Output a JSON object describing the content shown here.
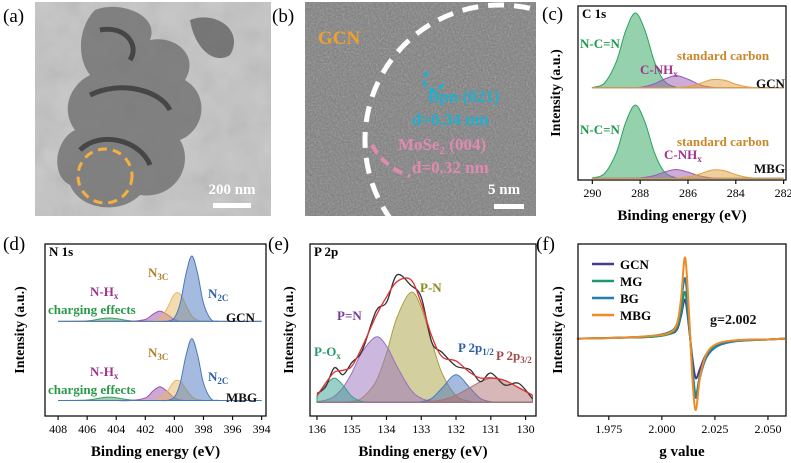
{
  "images": [
    {
      "label": "(a)",
      "scale_bar": "200 nm"
    },
    {
      "label": "(b)",
      "title": "GCN",
      "annotations": [
        {
          "text": "Bpn (021)"
        },
        {
          "text": "d=0.34 nm"
        },
        {
          "text": "MoSe",
          "sub": "2",
          "tail": " (004)"
        },
        {
          "text": "d=0.32 nm"
        }
      ],
      "scale_bar": "5 nm"
    }
  ],
  "chart_data": [
    {
      "type": "area",
      "label": "(c)",
      "title": "C 1s",
      "xlabel": "Binding energy (eV)",
      "ylabel": "Intensity (a.u.)",
      "x": [
        290,
        289.5,
        289,
        288.6,
        288.2,
        287.8,
        287.4,
        287,
        286.5,
        286,
        285.5,
        285,
        284.5,
        284,
        283.5,
        283,
        282.5,
        282
      ],
      "xlim": [
        290.6,
        281.9
      ],
      "xticks": [
        290,
        288,
        286,
        284,
        282
      ],
      "ylim": [
        0,
        100
      ],
      "series": [
        {
          "color": "#2aa35a",
          "fill": true,
          "values": [
            53.2,
            55.6,
            67.9,
            86,
            96,
            86,
            67.9,
            57,
            53.3,
            53,
            53,
            53,
            53,
            53,
            53,
            53,
            53,
            53
          ]
        },
        {
          "color": "#9b59b6",
          "fill": true,
          "values": [
            53,
            53,
            53,
            53,
            53,
            53.7,
            55.3,
            57.9,
            60,
            57.9,
            54.7,
            53.3,
            53,
            53,
            53,
            53,
            53,
            53
          ]
        },
        {
          "color": "#e0a040",
          "fill": true,
          "values": [
            53,
            53,
            53,
            53,
            53,
            53,
            53,
            53,
            53.1,
            53.7,
            55.5,
            57.7,
            57.4,
            55.1,
            53.5,
            53,
            53,
            53
          ]
        },
        {
          "color": "#2aa35a",
          "fill": true,
          "values": [
            1.2,
            3.6,
            15.6,
            33.3,
            43,
            33.3,
            15.6,
            4.9,
            1.3,
            1,
            1,
            1,
            1,
            1,
            1,
            1,
            1,
            1
          ]
        },
        {
          "color": "#9b59b6",
          "fill": true,
          "values": [
            1,
            1,
            1,
            1,
            1,
            1.5,
            2.6,
            4.5,
            6,
            4.5,
            2.3,
            1.2,
            1,
            1,
            1,
            1,
            1,
            1
          ]
        },
        {
          "color": "#e0a040",
          "fill": true,
          "values": [
            1,
            1,
            1,
            1,
            1,
            1,
            1,
            1,
            1.1,
            1.7,
            3.5,
            5.7,
            5.4,
            3.1,
            1.5,
            1,
            1,
            1
          ]
        }
      ],
      "annotations": [
        {
          "text": "N-C=N"
        },
        {
          "text": "C-NH",
          "sub": "x"
        },
        {
          "text": "standard carbon"
        },
        {
          "text": "GCN"
        },
        {
          "text": "N-C=N"
        },
        {
          "text": "C-NH",
          "sub": "x"
        },
        {
          "text": "standard carbon"
        },
        {
          "text": "MBG"
        }
      ]
    },
    {
      "type": "area",
      "label": "(d)",
      "title": "N 1s",
      "xlabel": "Binding energy (eV)",
      "ylabel": "Intensity (a.u.)",
      "x": [
        408,
        406,
        405,
        404.5,
        404,
        403,
        402,
        401.5,
        401,
        400.5,
        400,
        399.6,
        399.2,
        398.8,
        398.4,
        398,
        397.5,
        397,
        396,
        394
      ],
      "xlim": [
        408.9,
        393.7
      ],
      "xticks": [
        408,
        406,
        404,
        402,
        400,
        398,
        396,
        394
      ],
      "ylim": [
        0,
        100
      ],
      "series": [
        {
          "color": "#3aa060",
          "fill": true,
          "values": [
            55,
            55.3,
            56.6,
            57,
            56.6,
            55.3,
            55,
            55,
            55,
            55,
            55,
            55,
            55,
            55,
            55,
            55,
            55,
            55,
            55,
            55
          ]
        },
        {
          "color": "#a050a8",
          "fill": true,
          "values": [
            55,
            55,
            55,
            55,
            55,
            55,
            56.1,
            59,
            61,
            59,
            56.1,
            55.2,
            55,
            55,
            55,
            55,
            55,
            55,
            55,
            55
          ]
        },
        {
          "color": "#e8b860",
          "fill": true,
          "values": [
            55,
            55,
            55,
            55,
            55,
            55,
            55,
            55.1,
            56.6,
            62.6,
            70.9,
            70.9,
            64.4,
            58.2,
            55.7,
            55.1,
            55,
            55,
            55,
            55
          ]
        },
        {
          "color": "#4a78c0",
          "fill": true,
          "values": [
            55,
            55,
            55,
            55,
            55,
            55,
            55,
            55,
            55,
            55.1,
            57.1,
            65.6,
            82.7,
            93,
            82.7,
            65.6,
            56.3,
            55.1,
            55,
            55
          ]
        },
        {
          "color": "#3aa060",
          "fill": true,
          "values": [
            9,
            9.3,
            10.6,
            11,
            10.6,
            9.3,
            9,
            9,
            9,
            9,
            9,
            9,
            9,
            9,
            9,
            9,
            9,
            9,
            9,
            9
          ]
        },
        {
          "color": "#a050a8",
          "fill": true,
          "values": [
            9,
            9,
            9,
            9,
            9,
            9,
            10.5,
            14.3,
            17,
            14.3,
            10.5,
            9.3,
            9,
            9,
            9,
            9,
            9,
            9,
            9,
            9
          ]
        },
        {
          "color": "#e8b860",
          "fill": true,
          "values": [
            9,
            9,
            9,
            9,
            9,
            9,
            9,
            9.1,
            10.1,
            14.3,
            20.2,
            20.2,
            15.6,
            11.3,
            9.5,
            9.1,
            9,
            9,
            9,
            9
          ]
        },
        {
          "color": "#4a78c0",
          "fill": true,
          "values": [
            9,
            9,
            9,
            9,
            9,
            9,
            9,
            9,
            9,
            9.1,
            11,
            19.1,
            35.3,
            45,
            35.3,
            19.1,
            10.2,
            9.1,
            9,
            9
          ]
        }
      ],
      "annotations": [
        {
          "text": "N",
          "sub": "3C"
        },
        {
          "text": "N-H",
          "sub": "x"
        },
        {
          "text": "N",
          "sub": "2C"
        },
        {
          "text": "charging effects"
        },
        {
          "text": "GCN"
        },
        {
          "text": "N",
          "sub": "3C"
        },
        {
          "text": "N-H",
          "sub": "x"
        },
        {
          "text": "N",
          "sub": "2C"
        },
        {
          "text": "charging effects"
        },
        {
          "text": "MBG"
        }
      ]
    },
    {
      "type": "area",
      "label": "(e)",
      "title": "P 2p",
      "xlabel": "Binding energy (eV)",
      "ylabel": "Intensity (a.u.)",
      "x": [
        136,
        135.75,
        135.5,
        135.25,
        135,
        134.7,
        134.3,
        134,
        133.7,
        133.3,
        133,
        132.7,
        132.4,
        132,
        131.6,
        131.3,
        131,
        130.6,
        130.2,
        129.8
      ],
      "xlim": [
        136.2,
        129.7
      ],
      "xticks": [
        136,
        135,
        134,
        133,
        132,
        131,
        130
      ],
      "ylim": [
        0,
        100
      ],
      "series": [
        {
          "color": "#a8a040",
          "fill": true,
          "values": [
            8,
            8,
            8,
            8.1,
            8.5,
            10.5,
            20.2,
            36.5,
            57.2,
            72,
            63,
            43.2,
            24.7,
            11.9,
            8.5,
            8,
            8,
            8,
            8,
            8
          ]
        },
        {
          "color": "#9a70c0",
          "fill": true,
          "values": [
            8.3,
            9.2,
            11.5,
            16.6,
            24.9,
            37.2,
            46,
            40.7,
            28.9,
            15.2,
            10.3,
            8.6,
            8,
            8,
            8,
            8,
            8,
            8,
            8,
            8
          ]
        },
        {
          "color": "#3aa090",
          "fill": true,
          "values": [
            11.5,
            17.9,
            22,
            17.9,
            11.5,
            8.4,
            8,
            8,
            8,
            8,
            8,
            8,
            8,
            8,
            8,
            8,
            8,
            8,
            8,
            8
          ]
        },
        {
          "color": "#4a78c0",
          "fill": true,
          "values": [
            8,
            8,
            8,
            8,
            8,
            8,
            8,
            8,
            8,
            8,
            8.3,
            10.2,
            16.3,
            24,
            16.3,
            10.2,
            8.3,
            8,
            8,
            8
          ]
        },
        {
          "color": "#b07070",
          "fill": true,
          "values": [
            8,
            8,
            8,
            8,
            8,
            8,
            8,
            8,
            8,
            8,
            8,
            8.5,
            9.4,
            12.1,
            16.5,
            19.9,
            21.9,
            20.7,
            16.5,
            12.1
          ]
        },
        {
          "color": "#333333",
          "fill": false,
          "values": [
            13,
            17,
            28,
            24,
            31,
            38,
            61,
            66,
            82,
            76,
            69,
            43,
            37,
            29,
            27,
            20,
            25,
            18,
            19,
            10
          ]
        },
        {
          "color": "#e03030",
          "fill": false,
          "values": [
            11.8,
            19.1,
            25.5,
            26.6,
            28.9,
            40.1,
            58.2,
            69.2,
            78.1,
            79.2,
            65.6,
            46.5,
            34.4,
            32,
            25.3,
            22.1,
            22.2,
            20.7,
            16.5,
            12.1
          ]
        }
      ],
      "annotations": [
        {
          "text": "P-N"
        },
        {
          "text": "P=N"
        },
        {
          "text": "P-O",
          "sub": "x"
        },
        {
          "text": "P 2p",
          "sub": "1/2"
        },
        {
          "text": "P 2p",
          "sub": "3/2"
        }
      ]
    },
    {
      "type": "line",
      "label": "(f)",
      "xlabel": "g value",
      "ylabel": "Intensity (a.u.)",
      "legend": "upper left",
      "x": [
        1.96,
        1.98,
        1.995,
        2.003,
        2.007,
        2.009,
        2.011,
        2.013,
        2.0145,
        2.016,
        2.018,
        2.021,
        2.026,
        2.035,
        2.05,
        2.058
      ],
      "xlim": [
        1.9605,
        2.0585
      ],
      "xticks": [
        1.975,
        {
          "value": 2,
          "label": "2.000"
        },
        2.025,
        {
          "value": 2.05,
          "label": "2.050"
        }
      ],
      "ylim": [
        -90,
        110
      ],
      "series": [
        {
          "name": "GCN",
          "color": "#4b3a94",
          "values": [
            0,
            1,
            2,
            5,
            10,
            26,
            45,
            8,
            -25,
            -46,
            -35,
            -18,
            -7,
            -2,
            -1,
            0
          ]
        },
        {
          "name": "MG",
          "color": "#1a9a6c",
          "values": [
            0,
            1,
            2,
            5,
            12,
            30,
            54,
            10,
            -35,
            -65,
            -42,
            -20,
            -8,
            -3,
            -1,
            0
          ]
        },
        {
          "name": "BG",
          "color": "#1f7fb0",
          "values": [
            0,
            1,
            3,
            7,
            16,
            40,
            70,
            15,
            -40,
            -69,
            -45,
            -22,
            -9,
            -3,
            -1,
            0
          ]
        },
        {
          "name": "MBG",
          "color": "#f08a24",
          "values": [
            0,
            1,
            3,
            6,
            16,
            45,
            94,
            20,
            -50,
            -83,
            -45,
            -18,
            -6,
            -2,
            -1,
            0
          ]
        }
      ],
      "annotations": [
        {
          "text": "g=2.002"
        }
      ]
    }
  ]
}
